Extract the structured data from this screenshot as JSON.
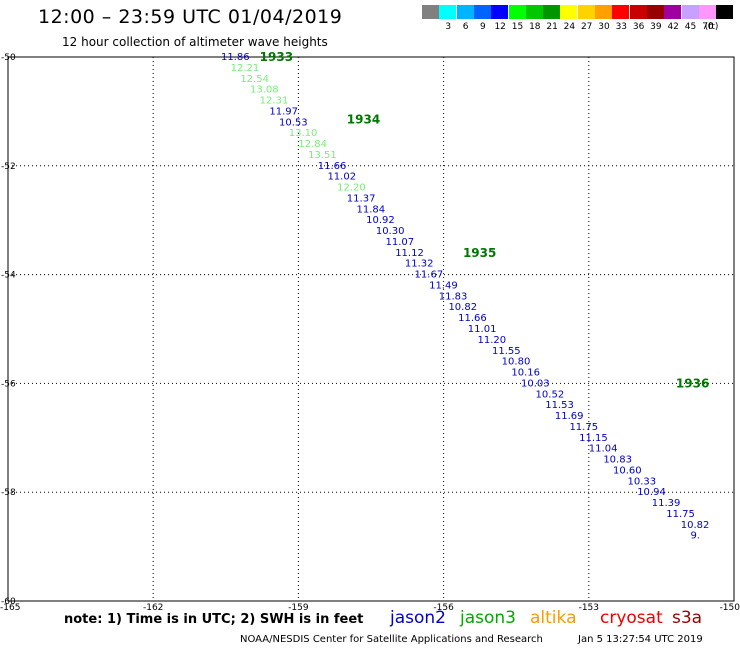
{
  "header": {
    "title": "12:00 – 23:59 UTC 01/04/2019",
    "subtitle": "12 hour collection of altimeter wave heights"
  },
  "scale": {
    "unit": "(ft)",
    "entries": [
      {
        "label": "",
        "color": "#808080"
      },
      {
        "label": "3",
        "color": "#00ffff"
      },
      {
        "label": "6",
        "color": "#00b4ff"
      },
      {
        "label": "9",
        "color": "#0064ff"
      },
      {
        "label": "12",
        "color": "#0000ff"
      },
      {
        "label": "15",
        "color": "#00ff00"
      },
      {
        "label": "18",
        "color": "#00c800"
      },
      {
        "label": "21",
        "color": "#009600"
      },
      {
        "label": "24",
        "color": "#ffff00"
      },
      {
        "label": "27",
        "color": "#ffd200"
      },
      {
        "label": "30",
        "color": "#ffa000"
      },
      {
        "label": "33",
        "color": "#ff0000"
      },
      {
        "label": "36",
        "color": "#c80000"
      },
      {
        "label": "39",
        "color": "#960000"
      },
      {
        "label": "42",
        "color": "#a000a0"
      },
      {
        "label": "45",
        "color": "#c8a0ff"
      },
      {
        "label": "70",
        "color": "#ff96ff"
      },
      {
        "label": "",
        "color": "#000000"
      }
    ]
  },
  "map": {
    "lon_range": [
      -165,
      -150
    ],
    "lat_range": [
      -60,
      -50
    ],
    "lon_ticks": [
      "-165",
      "-162",
      "-159",
      "-156",
      "-153",
      "-150"
    ],
    "lat_ticks": [
      "-50",
      "-52",
      "-54",
      "-56",
      "-58",
      "-60"
    ],
    "lat_tick_values": [
      -50,
      -52,
      -54,
      -56,
      -58,
      -60
    ],
    "lon_tick_values": [
      -165,
      -162,
      -159,
      -156,
      -153,
      -150
    ],
    "pass_labels": [
      "1933",
      "1934",
      "1935",
      "1936"
    ],
    "pass_label_color": "#007700",
    "pass_label_points": [
      [
        -159.8,
        -50.0
      ],
      [
        -158.0,
        -51.15
      ],
      [
        -155.6,
        -53.6
      ],
      [
        -151.2,
        -56.0
      ]
    ],
    "track_colors": {
      "jason2": "#0000cc",
      "jason3": "#77ee77"
    },
    "observations": [
      {
        "v": "11.86",
        "s": "jason2",
        "lon": -160.6,
        "lat": -50.0
      },
      {
        "v": "12.21",
        "s": "jason3",
        "lon": -160.4,
        "lat": -50.2
      },
      {
        "v": "12.54",
        "s": "jason3",
        "lon": -160.2,
        "lat": -50.4
      },
      {
        "v": "13.08",
        "s": "jason3",
        "lon": -160.0,
        "lat": -50.6
      },
      {
        "v": "12.31",
        "s": "jason3",
        "lon": -159.8,
        "lat": -50.8
      },
      {
        "v": "11.97",
        "s": "jason2",
        "lon": -159.6,
        "lat": -51.0
      },
      {
        "v": "10.53",
        "s": "jason2",
        "lon": -159.4,
        "lat": -51.2
      },
      {
        "v": "13.10",
        "s": "jason3",
        "lon": -159.2,
        "lat": -51.4
      },
      {
        "v": "12.84",
        "s": "jason3",
        "lon": -159.0,
        "lat": -51.6
      },
      {
        "v": "13.51",
        "s": "jason3",
        "lon": -158.8,
        "lat": -51.8
      },
      {
        "v": "11.66",
        "s": "jason2",
        "lon": -158.6,
        "lat": -52.0
      },
      {
        "v": "11.02",
        "s": "jason2",
        "lon": -158.4,
        "lat": -52.2
      },
      {
        "v": "12.20",
        "s": "jason3",
        "lon": -158.2,
        "lat": -52.4
      },
      {
        "v": "11.37",
        "s": "jason2",
        "lon": -158.0,
        "lat": -52.6
      },
      {
        "v": "11.84",
        "s": "jason2",
        "lon": -157.8,
        "lat": -52.8
      },
      {
        "v": "10.92",
        "s": "jason2",
        "lon": -157.6,
        "lat": -53.0
      },
      {
        "v": "10.30",
        "s": "jason2",
        "lon": -157.4,
        "lat": -53.2
      },
      {
        "v": "11.07",
        "s": "jason2",
        "lon": -157.2,
        "lat": -53.4
      },
      {
        "v": "11.12",
        "s": "jason2",
        "lon": -157.0,
        "lat": -53.6
      },
      {
        "v": "11.32",
        "s": "jason2",
        "lon": -156.8,
        "lat": -53.8
      },
      {
        "v": "11.67",
        "s": "jason2",
        "lon": -156.6,
        "lat": -54.0
      },
      {
        "v": "11.49",
        "s": "jason2",
        "lon": -156.3,
        "lat": -54.2
      },
      {
        "v": "11.83",
        "s": "jason2",
        "lon": -156.1,
        "lat": -54.4
      },
      {
        "v": "10.82",
        "s": "jason2",
        "lon": -155.9,
        "lat": -54.6
      },
      {
        "v": "11.66",
        "s": "jason2",
        "lon": -155.7,
        "lat": -54.8
      },
      {
        "v": "11.01",
        "s": "jason2",
        "lon": -155.5,
        "lat": -55.0
      },
      {
        "v": "11.20",
        "s": "jason2",
        "lon": -155.3,
        "lat": -55.2
      },
      {
        "v": "11.55",
        "s": "jason2",
        "lon": -155.0,
        "lat": -55.4
      },
      {
        "v": "10.80",
        "s": "jason2",
        "lon": -154.8,
        "lat": -55.6
      },
      {
        "v": "10.16",
        "s": "jason2",
        "lon": -154.6,
        "lat": -55.8
      },
      {
        "v": "10.03",
        "s": "jason2",
        "lon": -154.4,
        "lat": -56.0
      },
      {
        "v": "10.52",
        "s": "jason2",
        "lon": -154.1,
        "lat": -56.2
      },
      {
        "v": "11.53",
        "s": "jason2",
        "lon": -153.9,
        "lat": -56.4
      },
      {
        "v": "11.69",
        "s": "jason2",
        "lon": -153.7,
        "lat": -56.6
      },
      {
        "v": "11.75",
        "s": "jason2",
        "lon": -153.4,
        "lat": -56.8
      },
      {
        "v": "11.15",
        "s": "jason2",
        "lon": -153.2,
        "lat": -57.0
      },
      {
        "v": "11.04",
        "s": "jason2",
        "lon": -153.0,
        "lat": -57.2
      },
      {
        "v": "10.83",
        "s": "jason2",
        "lon": -152.7,
        "lat": -57.4
      },
      {
        "v": "10.60",
        "s": "jason2",
        "lon": -152.5,
        "lat": -57.6
      },
      {
        "v": "10.33",
        "s": "jason2",
        "lon": -152.2,
        "lat": -57.8
      },
      {
        "v": "10.94",
        "s": "jason2",
        "lon": -152.0,
        "lat": -58.0
      },
      {
        "v": "11.39",
        "s": "jason2",
        "lon": -151.7,
        "lat": -58.2
      },
      {
        "v": "11.75",
        "s": "jason2",
        "lon": -151.4,
        "lat": -58.4
      },
      {
        "v": "10.82",
        "s": "jason2",
        "lon": -151.1,
        "lat": -58.6
      },
      {
        "v": "9.",
        "s": "jason2",
        "lon": -150.9,
        "lat": -58.8
      }
    ]
  },
  "footer": {
    "note": "note: 1) Time is in UTC; 2) SWH is in feet",
    "satellites": [
      {
        "name": "jason2",
        "color": "#0000cc"
      },
      {
        "name": "jason3",
        "color": "#00aa00"
      },
      {
        "name": "altika",
        "color": "#ff9900"
      },
      {
        "name": "cryosat",
        "color": "#ee0000"
      },
      {
        "name": "s3a",
        "color": "#990000"
      }
    ],
    "credit": "NOAA/NESDIS Center for Satellite Applications and Research",
    "timestamp": "Jan  5 13:27:54 UTC 2019"
  }
}
